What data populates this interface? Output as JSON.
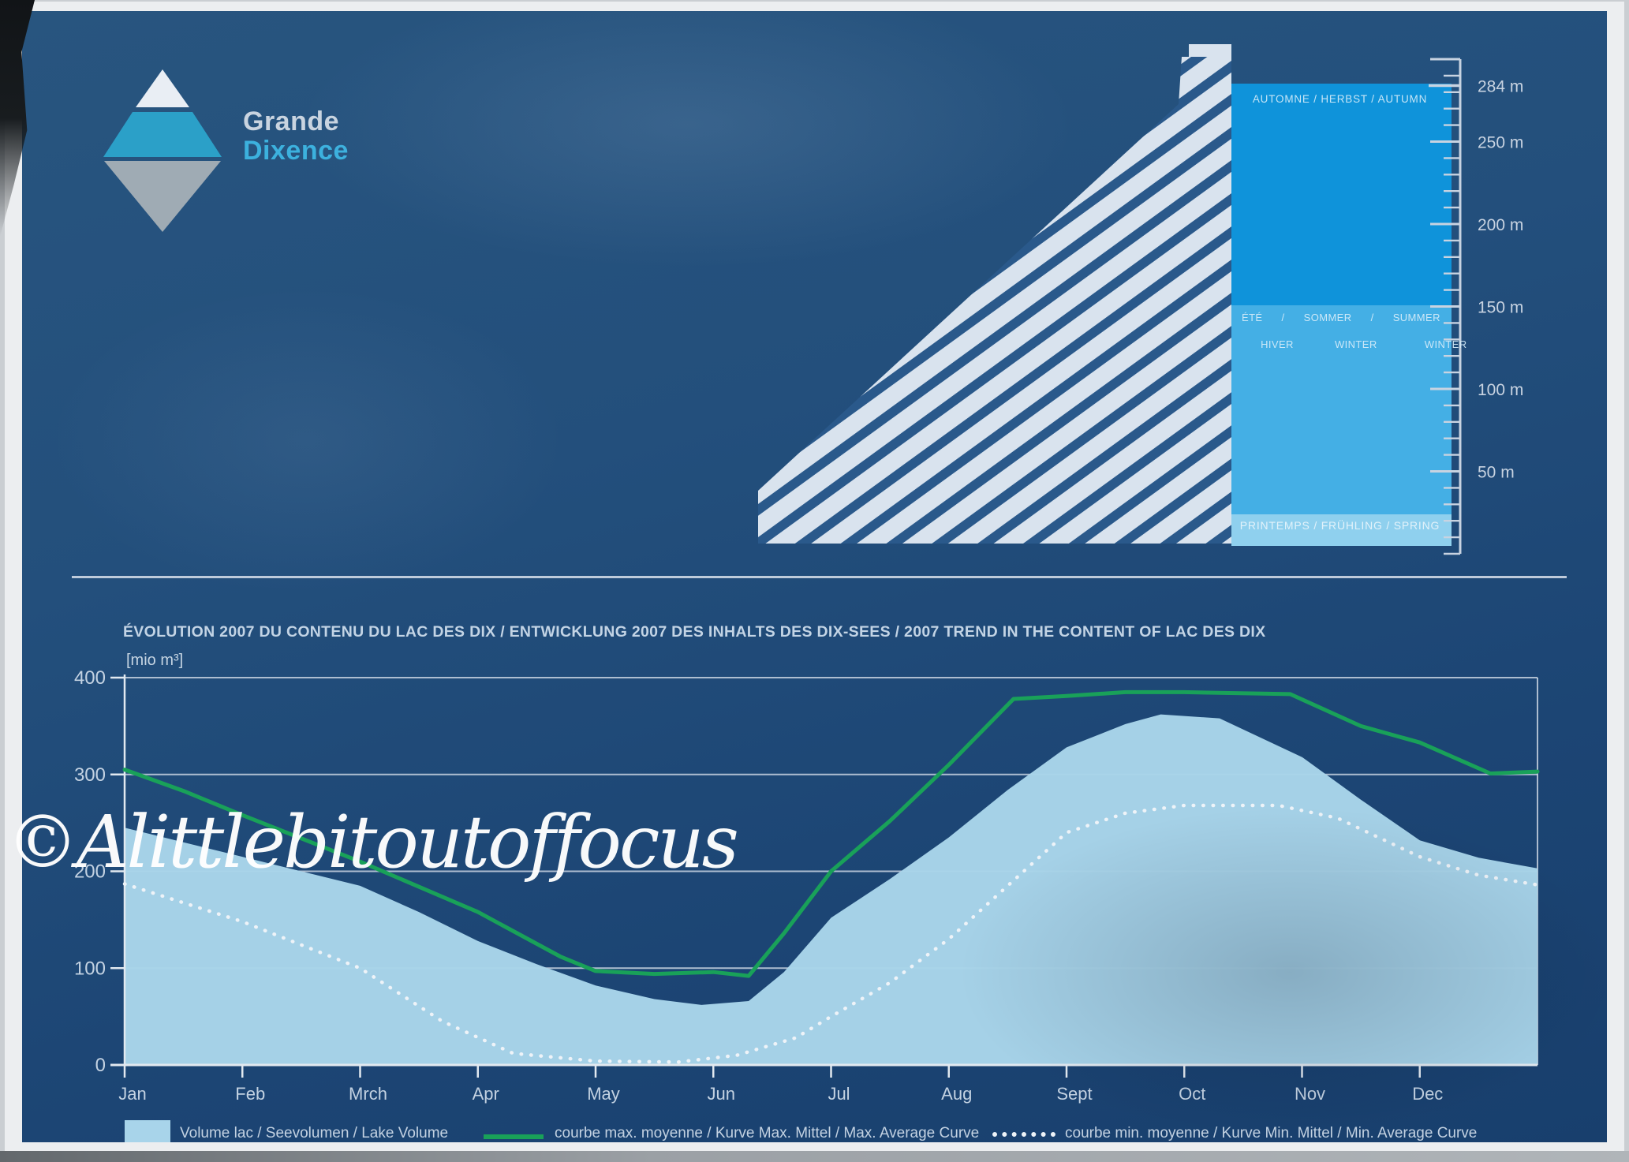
{
  "logo": {
    "line1": "Grande",
    "line2": "Dixence"
  },
  "dam_diagram": {
    "season_top": "AUTOMNE  /  HERBST  /  AUTUMN",
    "season_mid_line1": "ÉTÉ      /      SOMMER      /      SUMMER",
    "season_mid_line2": "HIVER             WINTER               WINTER",
    "season_bottom": "PRINTEMPS  /  FRÜHLING  /  SPRING",
    "ruler": {
      "unit": "m",
      "minor_step": 10,
      "major_step": 50,
      "range_top": 300,
      "labelled_values": [
        284,
        250,
        200,
        150,
        100,
        50
      ],
      "labels": [
        "284 m",
        "250 m",
        "200 m",
        "150 m",
        "100 m",
        "50 m"
      ]
    }
  },
  "chart": {
    "title": "ÉVOLUTION 2007 DU CONTENU DU LAC DES DIX / ENTWICKLUNG 2007 DES INHALTS DES DIX-SEES / 2007 TREND IN THE CONTENT OF LAC DES DIX",
    "unit_label": "[mio m³]",
    "y_ticks": [
      0,
      100,
      200,
      300,
      400
    ],
    "months": [
      "Jan",
      "Feb",
      "Mrch",
      "Apr",
      "May",
      "Jun",
      "Jul",
      "Aug",
      "Sept",
      "Oct",
      "Nov",
      "Dec"
    ],
    "legend": [
      {
        "swatch": "area",
        "label": "Volume lac / Seevolumen / Lake Volume"
      },
      {
        "swatch": "line",
        "label": "courbe max. moyenne / Kurve Max. Mittel / Max. Average Curve"
      },
      {
        "swatch": "dotted",
        "label": "courbe min. moyenne / Kurve Min. Mittel / Min. Average Curve"
      }
    ]
  },
  "chart_data": {
    "type": "area",
    "x_unit": "month index (0 = start Jan, 12 = end Dec)",
    "ylabel": "mio m³",
    "ylim": [
      0,
      400
    ],
    "grid": "horizontal lines every 100",
    "legend_position": "bottom",
    "series": [
      {
        "name": "Volume lac / Seevolumen / Lake Volume",
        "style": "filled-area",
        "color": "#a8d4ea",
        "x": [
          0,
          0.5,
          1,
          1.5,
          2,
          2.5,
          3,
          3.5,
          4,
          4.5,
          4.9,
          5.3,
          5.6,
          6,
          6.5,
          7,
          7.5,
          8,
          8.5,
          8.8,
          9.3,
          10,
          10.5,
          11,
          11.5,
          12
        ],
        "values": [
          245,
          230,
          215,
          200,
          185,
          158,
          128,
          104,
          82,
          68,
          62,
          66,
          96,
          152,
          192,
          235,
          284,
          328,
          352,
          362,
          358,
          318,
          274,
          232,
          214,
          203
        ]
      },
      {
        "name": "courbe max. moyenne / Kurve Max. Mittel / Max. Average Curve",
        "style": "solid-line",
        "color": "#19a159",
        "x": [
          0,
          0.5,
          1,
          2,
          3,
          3.7,
          4,
          4.5,
          5,
          5.3,
          5.6,
          6,
          6.5,
          7,
          7.55,
          8,
          8.5,
          9,
          9.9,
          10.5,
          11,
          11.6,
          12
        ],
        "values": [
          305,
          283,
          258,
          210,
          158,
          112,
          97,
          94,
          96,
          92,
          136,
          200,
          252,
          310,
          378,
          381,
          385,
          385,
          383,
          350,
          333,
          301,
          303
        ]
      },
      {
        "name": "courbe min. moyenne / Kurve Min. Mittel / Min. Average Curve",
        "style": "dotted-line",
        "color": "#eef3f8",
        "x": [
          0,
          1,
          2,
          2.7,
          3.3,
          4,
          4.7,
          5.2,
          5.7,
          6,
          6.5,
          7,
          7.5,
          8,
          8.5,
          9,
          9.8,
          10.3,
          11,
          11.5,
          12
        ],
        "values": [
          187,
          148,
          100,
          45,
          12,
          4,
          3,
          10,
          28,
          50,
          85,
          130,
          185,
          240,
          260,
          268,
          268,
          255,
          215,
          196,
          186
        ]
      }
    ]
  },
  "watermark": "©Alittlebitoutoffocus",
  "colors": {
    "panel_blue": "#234f7c",
    "area_fill": "#a8d4ea",
    "max_curve_green": "#19a159",
    "min_curve_white": "#eef3f8",
    "grid_line": "#d2dbe7",
    "axis_line": "#e2e9f0",
    "dam_face": "#d9e3ee",
    "dam_stripe": "#2a598b",
    "column_autumn_blue": "#0f93da",
    "column_winter_blue": "#44afe5",
    "column_spring_band": "#8fd0ee",
    "text_light": "#c3d2e2",
    "logo_teal": "#2ba0c8",
    "logo_gray": "#9fabb4"
  }
}
